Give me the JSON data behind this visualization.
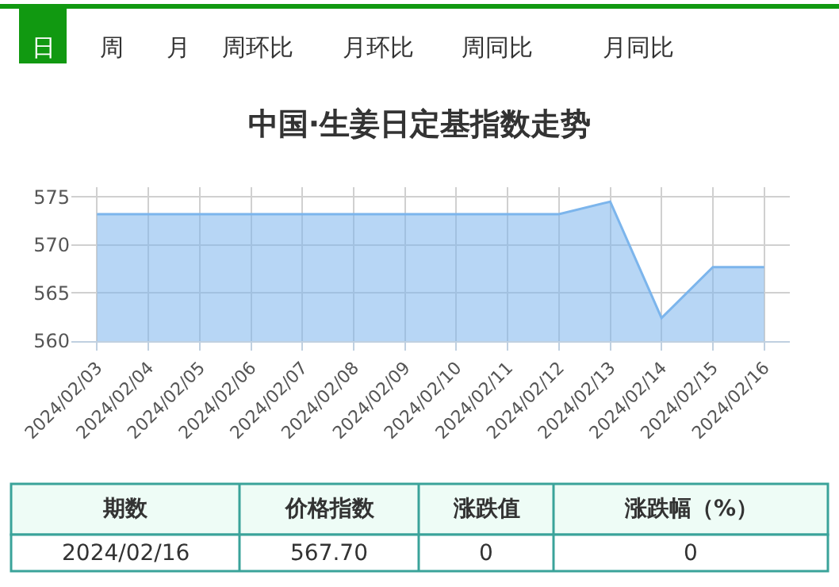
{
  "chart_data": {
    "type": "area",
    "title": "中国·生姜日定基指数走势",
    "categories": [
      "2024/02/03",
      "2024/02/04",
      "2024/02/05",
      "2024/02/06",
      "2024/02/07",
      "2024/02/08",
      "2024/02/09",
      "2024/02/10",
      "2024/02/11",
      "2024/02/12",
      "2024/02/13",
      "2024/02/14",
      "2024/02/15",
      "2024/02/16"
    ],
    "series": [
      {
        "color": "#7cb5ec",
        "values": [
          573.2,
          573.2,
          573.2,
          573.2,
          573.2,
          573.2,
          573.2,
          573.2,
          573.2,
          573.2,
          574.5,
          562.4,
          567.7,
          567.7
        ]
      }
    ],
    "ylim": [
      560,
      576
    ],
    "yticks": [
      560,
      565,
      570,
      575
    ],
    "grid": true,
    "marker": "none",
    "annotations": [
      "日",
      "周",
      "月",
      "周环比",
      "月环比",
      "周同比",
      "月同比",
      "期数",
      "价格指数",
      "涨跌值",
      "涨跌幅（%）",
      "2024/02/16",
      "567.70",
      "0",
      "0"
    ]
  }
}
